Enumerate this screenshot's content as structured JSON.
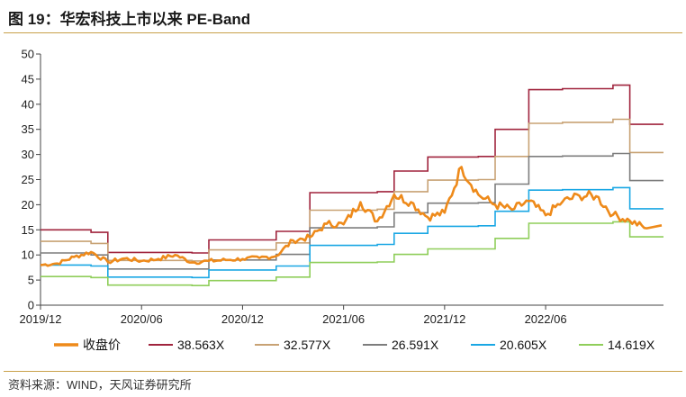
{
  "figure": {
    "title": "图 19：华宏科技上市以来 PE-Band",
    "source": "资料来源：WIND，天风证券研究所"
  },
  "chart_data": {
    "type": "line",
    "title": "图 19：华宏科技上市以来 PE-Band",
    "xlabel": "",
    "ylabel": "",
    "ylim": [
      0,
      50
    ],
    "yticks": [
      0,
      5,
      10,
      15,
      20,
      25,
      30,
      35,
      40,
      45,
      50
    ],
    "xlim": [
      "2019/12",
      "2023/01"
    ],
    "xticks": [
      "2019/12",
      "2020/06",
      "2020/12",
      "2021/06",
      "2021/12",
      "2022/06"
    ],
    "grid": false,
    "legend": "bottom",
    "series": [
      {
        "name": "收盘价",
        "color": "#ee8a1a",
        "x": [
          "2019/12",
          "2020/01",
          "2020/02",
          "2020/03",
          "2020/04",
          "2020/05",
          "2020/06",
          "2020/07",
          "2020/08",
          "2020/09",
          "2020/10",
          "2020/11",
          "2020/12",
          "2021/01",
          "2021/02",
          "2021/03",
          "2021/04",
          "2021/05",
          "2021/06",
          "2021/07",
          "2021/08",
          "2021/09",
          "2021/10",
          "2021/11",
          "2021/12",
          "2022/01",
          "2022/02",
          "2022/03",
          "2022/04",
          "2022/05",
          "2022/06",
          "2022/07",
          "2022/08",
          "2022/09",
          "2022/10",
          "2022/11",
          "2022/12"
        ],
        "values": [
          8.0,
          8.3,
          9.6,
          10.6,
          8.6,
          9.3,
          8.8,
          9.2,
          10.0,
          8.5,
          8.8,
          9.0,
          9.2,
          9.4,
          9.8,
          12.9,
          13.5,
          16.2,
          16.1,
          20.5,
          16.7,
          22.0,
          20.5,
          17.5,
          18.4,
          27.5,
          22.0,
          20.0,
          19.0,
          20.7,
          17.9,
          20.6,
          21.8,
          21.7,
          18.0,
          16.8,
          15.3
        ]
      },
      {
        "name": "38.563X",
        "color": "#a0243d",
        "x": [
          "2019/12",
          "2020/02",
          "2020/03",
          "2020/04",
          "2020/09",
          "2020/10",
          "2020/11",
          "2021/02",
          "2021/03",
          "2021/04",
          "2021/08",
          "2021/09",
          "2021/11",
          "2022/02",
          "2022/03",
          "2022/05",
          "2022/07",
          "2022/10",
          "2022/11"
        ],
        "values": [
          15.0,
          15.0,
          14.5,
          10.5,
          10.4,
          13.0,
          13.0,
          14.7,
          14.7,
          22.4,
          22.6,
          26.7,
          29.5,
          29.6,
          35.0,
          42.9,
          43.1,
          43.8,
          36.0
        ]
      },
      {
        "name": "32.577X",
        "color": "#c8a274",
        "x": [
          "2019/12",
          "2020/02",
          "2020/03",
          "2020/04",
          "2020/09",
          "2020/10",
          "2020/11",
          "2021/02",
          "2021/03",
          "2021/04",
          "2021/08",
          "2021/09",
          "2021/11",
          "2022/02",
          "2022/03",
          "2022/05",
          "2022/07",
          "2022/10",
          "2022/11"
        ],
        "values": [
          12.7,
          12.7,
          12.3,
          8.9,
          8.8,
          11.0,
          11.0,
          12.4,
          12.4,
          18.9,
          19.1,
          22.6,
          24.9,
          25.0,
          29.6,
          36.2,
          36.4,
          37.0,
          30.4
        ]
      },
      {
        "name": "26.591X",
        "color": "#7d7d7d",
        "x": [
          "2019/12",
          "2020/02",
          "2020/03",
          "2020/04",
          "2020/09",
          "2020/10",
          "2020/11",
          "2021/02",
          "2021/03",
          "2021/04",
          "2021/08",
          "2021/09",
          "2021/11",
          "2022/02",
          "2022/03",
          "2022/05",
          "2022/07",
          "2022/10",
          "2022/11"
        ],
        "values": [
          10.4,
          10.4,
          10.0,
          7.2,
          7.2,
          9.0,
          9.0,
          10.1,
          10.1,
          15.4,
          15.6,
          18.4,
          20.3,
          20.4,
          24.1,
          29.6,
          29.7,
          30.2,
          24.8
        ]
      },
      {
        "name": "20.605X",
        "color": "#1aa7e4",
        "x": [
          "2019/12",
          "2020/02",
          "2020/03",
          "2020/04",
          "2020/09",
          "2020/10",
          "2020/11",
          "2021/02",
          "2021/03",
          "2021/04",
          "2021/08",
          "2021/09",
          "2021/11",
          "2022/02",
          "2022/03",
          "2022/05",
          "2022/07",
          "2022/10",
          "2022/11"
        ],
        "values": [
          8.0,
          8.0,
          7.8,
          5.6,
          5.5,
          7.0,
          7.0,
          7.8,
          7.8,
          11.9,
          12.1,
          14.3,
          15.7,
          15.8,
          18.7,
          22.9,
          23.0,
          23.4,
          19.2
        ]
      },
      {
        "name": "14.619X",
        "color": "#8fce5a",
        "x": [
          "2019/12",
          "2020/02",
          "2020/03",
          "2020/04",
          "2020/09",
          "2020/10",
          "2020/11",
          "2021/02",
          "2021/03",
          "2021/04",
          "2021/08",
          "2021/09",
          "2021/11",
          "2022/02",
          "2022/03",
          "2022/05",
          "2022/07",
          "2022/10",
          "2022/11"
        ],
        "values": [
          5.7,
          5.7,
          5.5,
          4.0,
          3.9,
          4.9,
          4.9,
          5.6,
          5.6,
          8.5,
          8.6,
          10.1,
          11.2,
          11.2,
          13.3,
          16.3,
          16.3,
          16.6,
          13.6
        ]
      }
    ]
  }
}
